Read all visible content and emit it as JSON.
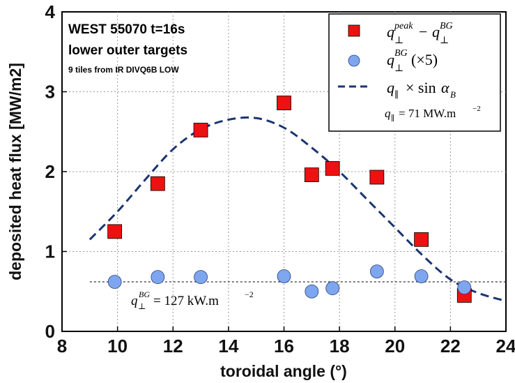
{
  "chart_data": {
    "type": "scatter",
    "xlabel": "toroidal angle (°)",
    "ylabel": "deposited heat flux [MW/m2]",
    "xlim": [
      8,
      24
    ],
    "ylim": [
      0,
      4
    ],
    "x_ticks": [
      "8",
      "10",
      "12",
      "14",
      "16",
      "18",
      "20",
      "22",
      "24"
    ],
    "y_ticks": [
      "0",
      "1",
      "2",
      "3",
      "4"
    ],
    "grid": true,
    "legend_position": "top-right",
    "annotations": {
      "line1": "WEST 55070 t=16s",
      "line2": "lower outer targets",
      "line3": "9 tiles from IR DIVQ6B LOW",
      "bg_level_label": "= 127 kW.m",
      "q_parallel_label": "= 71 MW.m"
    },
    "series": [
      {
        "name": "q⊥peak − q⊥BG",
        "marker": "square",
        "color": "#ee1111",
        "points": [
          [
            9.9,
            1.25
          ],
          [
            11.45,
            1.85
          ],
          [
            13.0,
            2.52
          ],
          [
            16.0,
            2.86
          ],
          [
            17.0,
            1.96
          ],
          [
            17.75,
            2.04
          ],
          [
            19.35,
            1.93
          ],
          [
            20.95,
            1.15
          ],
          [
            22.5,
            0.45
          ]
        ]
      },
      {
        "name": "q⊥BG(×5)",
        "marker": "circle",
        "color": "#7ea6ee",
        "points": [
          [
            9.9,
            0.62
          ],
          [
            11.45,
            0.68
          ],
          [
            13.0,
            0.68
          ],
          [
            16.0,
            0.69
          ],
          [
            17.0,
            0.5
          ],
          [
            17.75,
            0.54
          ],
          [
            19.35,
            0.75
          ],
          [
            20.95,
            0.69
          ],
          [
            22.5,
            0.55
          ]
        ]
      },
      {
        "name": "q∥ × sin αB",
        "marker": "dashed-line",
        "color": "#1a3572",
        "points": [
          [
            9.0,
            1.15
          ],
          [
            10.0,
            1.5
          ],
          [
            11.0,
            1.9
          ],
          [
            12.0,
            2.28
          ],
          [
            13.0,
            2.53
          ],
          [
            14.0,
            2.65
          ],
          [
            15.0,
            2.67
          ],
          [
            16.0,
            2.55
          ],
          [
            17.0,
            2.3
          ],
          [
            18.0,
            2.0
          ],
          [
            19.0,
            1.65
          ],
          [
            20.0,
            1.3
          ],
          [
            21.0,
            0.95
          ],
          [
            22.0,
            0.65
          ],
          [
            23.0,
            0.48
          ],
          [
            24.0,
            0.38
          ]
        ]
      }
    ],
    "bg_level": 0.62
  }
}
